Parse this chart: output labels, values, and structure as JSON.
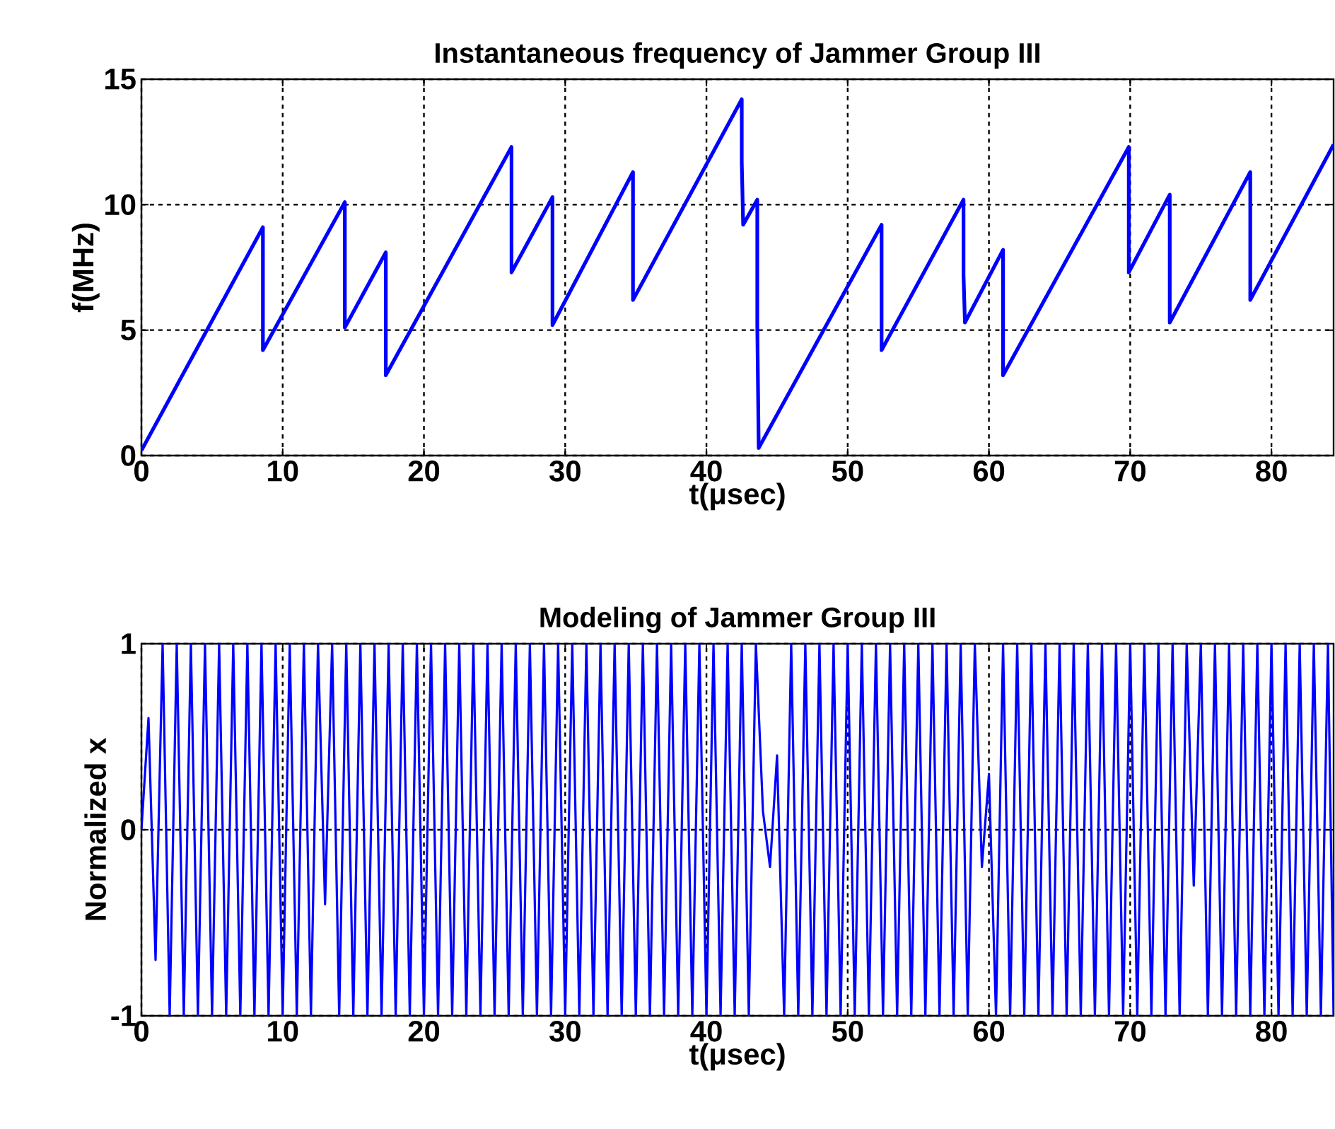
{
  "chart_data": [
    {
      "type": "line",
      "title": "Instantaneous frequency of Jammer Group III",
      "xlabel": "t(μsec)",
      "ylabel": "f(MHz)",
      "xlim": [
        0,
        84.4
      ],
      "ylim": [
        0,
        15
      ],
      "xticks": [
        0,
        10,
        20,
        30,
        40,
        50,
        60,
        70,
        80
      ],
      "yticks": [
        0,
        5,
        10,
        15
      ],
      "grid": true,
      "series": [
        {
          "color": "#0000ff",
          "x": [
            0,
            8.6,
            8.6,
            14.4,
            14.4,
            17.3,
            17.3,
            26.2,
            26.2,
            29.1,
            29.1,
            34.8,
            34.8,
            42.5,
            42.5,
            42.6,
            43.2,
            43.6,
            43.6,
            43.7,
            52.4,
            52.4,
            58.2,
            58.2,
            58.3,
            61.0,
            61.0,
            69.9,
            69.9,
            72.8,
            72.8,
            78.5,
            78.5,
            84.4
          ],
          "values": [
            0.2,
            9.1,
            4.2,
            10.1,
            5.1,
            8.1,
            3.2,
            12.3,
            7.3,
            10.3,
            5.2,
            11.3,
            6.2,
            14.2,
            11.7,
            9.2,
            9.8,
            10.2,
            5.2,
            0.3,
            9.2,
            4.2,
            10.2,
            7.2,
            5.3,
            8.2,
            3.2,
            12.3,
            7.3,
            10.4,
            5.3,
            11.3,
            6.2,
            12.4
          ]
        }
      ]
    },
    {
      "type": "line",
      "title": "Modeling of Jammer Group III",
      "xlabel": "t(μsec)",
      "ylabel": "Normalized x",
      "xlim": [
        0,
        84.4
      ],
      "ylim": [
        -1,
        1
      ],
      "xticks": [
        0,
        10,
        20,
        30,
        40,
        50,
        60,
        70,
        80
      ],
      "yticks": [
        -1,
        0,
        1
      ],
      "grid": true,
      "series": [
        {
          "color": "#0000ff",
          "x": [
            0,
            0.5,
            1,
            1.5,
            2,
            2.5,
            3,
            3.5,
            4,
            4.5,
            5,
            5.5,
            6,
            6.5,
            7,
            7.5,
            8,
            8.5,
            9,
            9.5,
            10,
            10.5,
            11,
            11.5,
            12,
            12.5,
            13,
            13.5,
            14,
            14.5,
            15,
            15.5,
            16,
            16.5,
            17,
            17.5,
            18,
            18.5,
            19,
            19.5,
            20,
            20.5,
            21,
            21.5,
            22,
            22.5,
            23,
            23.5,
            24,
            24.5,
            25,
            25.5,
            26,
            26.5,
            27,
            27.5,
            28,
            28.5,
            29,
            29.5,
            30,
            30.5,
            31,
            31.5,
            32,
            32.5,
            33,
            33.5,
            34,
            34.5,
            35,
            35.5,
            36,
            36.5,
            37,
            37.5,
            38,
            38.5,
            39,
            39.5,
            40,
            40.5,
            41,
            41.5,
            42,
            42.5,
            43,
            43.5,
            44,
            44.5,
            45,
            45.5,
            46,
            46.5,
            47,
            47.5,
            48,
            48.5,
            49,
            49.5,
            50,
            50.5,
            51,
            51.5,
            52,
            52.5,
            53,
            53.5,
            54,
            54.5,
            55,
            55.5,
            56,
            56.5,
            57,
            57.5,
            58,
            58.5,
            59,
            59.5,
            60,
            60.5,
            61,
            61.5,
            62,
            62.5,
            63,
            63.5,
            64,
            64.5,
            65,
            65.5,
            66,
            66.5,
            67,
            67.5,
            68,
            68.5,
            69,
            69.5,
            70,
            70.5,
            71,
            71.5,
            72,
            72.5,
            73,
            73.5,
            74,
            74.5,
            75,
            75.5,
            76,
            76.5,
            77,
            77.5,
            78,
            78.5,
            79,
            79.5,
            80,
            80.5,
            81,
            81.5,
            82,
            82.5,
            83,
            83.5,
            84,
            84.4
          ],
          "values": [
            0,
            0.6,
            -0.7,
            1,
            -1,
            1,
            -1,
            1,
            -1,
            1,
            -1,
            1,
            -1,
            1,
            -1,
            1,
            -1,
            1,
            -1,
            1,
            -1,
            1,
            -1,
            1,
            -1,
            1,
            -0.4,
            1,
            -1,
            1,
            -1,
            1,
            -1,
            1,
            -1,
            1,
            -1,
            1,
            -1,
            1,
            -1,
            1,
            -1,
            1,
            -1,
            1,
            -1,
            1,
            -1,
            1,
            -1,
            1,
            -1,
            1,
            -1,
            1,
            -1,
            1,
            -1,
            1,
            -1,
            1,
            -1,
            1,
            -1,
            1,
            -1,
            1,
            -1,
            1,
            -1,
            1,
            -1,
            1,
            -1,
            1,
            -1,
            1,
            -1,
            1,
            -1,
            1,
            -1,
            1,
            -1,
            1,
            -1,
            1,
            0.1,
            -0.2,
            0.4,
            -1,
            1,
            -1,
            1,
            -1,
            1,
            -1,
            1,
            -1,
            1,
            -1,
            1,
            -1,
            1,
            -1,
            1,
            -1,
            1,
            -1,
            1,
            -1,
            1,
            -1,
            1,
            -1,
            1,
            -1,
            1,
            -0.2,
            0.3,
            -1,
            1,
            -1,
            1,
            -1,
            1,
            -1,
            1,
            -1,
            1,
            -1,
            1,
            -1,
            1,
            -1,
            1,
            -1,
            1,
            -1,
            1,
            -1,
            1,
            -1,
            1,
            -1,
            1,
            -1,
            1,
            -0.3,
            1,
            -1,
            1,
            -1,
            1,
            -1,
            1,
            -1,
            1,
            -1,
            1,
            -1,
            1,
            -1,
            1,
            -1,
            1,
            -1,
            1,
            -1
          ]
        }
      ]
    }
  ]
}
